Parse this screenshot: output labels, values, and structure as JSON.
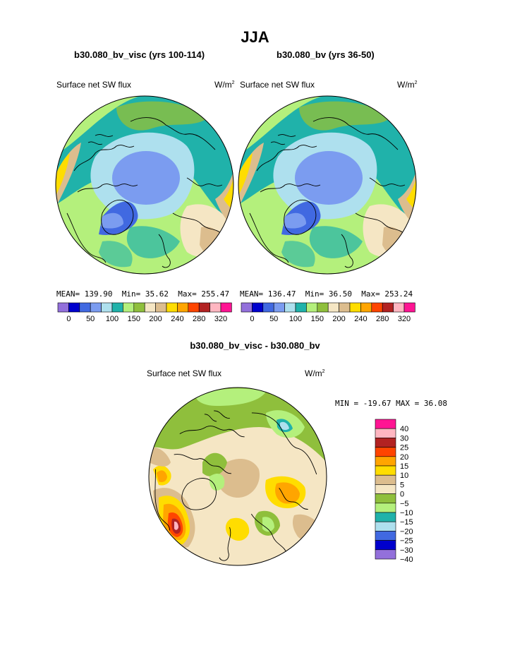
{
  "page": {
    "title": "JJA"
  },
  "colors": {
    "ocean_blue": "#7b9cf0",
    "light_blue": "#aee0ee",
    "teal": "#20b2aa",
    "light_green": "#b4f07c",
    "green": "#8fbf3c",
    "beige": "#f5e6c4",
    "tan": "#dcbd8e",
    "yellow": "#ffdd00",
    "orange": "#ffa500",
    "red_orange": "#ff4500",
    "dark_red": "#b22222",
    "pink": "#ffb6c1",
    "magenta": "#ff1493"
  },
  "chart_data": [
    {
      "type": "heatmap",
      "projection": "polar stereographic",
      "title": "b30.080_bv_visc (yrs 100-114)",
      "field_label": "Surface net SW flux",
      "units_base": "W/m",
      "units_exp": "2",
      "stats": {
        "mean_label": "MEAN=",
        "mean": "139.90",
        "min_label": "Min=",
        "min": "35.62",
        "max_label": "Max=",
        "max": "255.47"
      },
      "colorbar": {
        "orientation": "horizontal",
        "colors": [
          "#9370db",
          "#0000cd",
          "#4169e1",
          "#7b9cf0",
          "#aee0ee",
          "#20b2aa",
          "#b4f07c",
          "#8fbf3c",
          "#f5e6c4",
          "#dcbd8e",
          "#ffdd00",
          "#ffa500",
          "#ff4500",
          "#b22222",
          "#ffb6c1",
          "#ff1493"
        ],
        "tick_labels": [
          "0",
          "50",
          "100",
          "150",
          "200",
          "240",
          "280",
          "320"
        ]
      }
    },
    {
      "type": "heatmap",
      "projection": "polar stereographic",
      "title": "b30.080_bv (yrs 36-50)",
      "field_label": "Surface net SW flux",
      "units_base": "W/m",
      "units_exp": "2",
      "stats": {
        "mean_label": "MEAN=",
        "mean": "136.47",
        "min_label": "Min=",
        "min": "36.50",
        "max_label": "Max=",
        "max": "253.24"
      },
      "colorbar": {
        "orientation": "horizontal",
        "colors": [
          "#9370db",
          "#0000cd",
          "#4169e1",
          "#7b9cf0",
          "#aee0ee",
          "#20b2aa",
          "#b4f07c",
          "#8fbf3c",
          "#f5e6c4",
          "#dcbd8e",
          "#ffdd00",
          "#ffa500",
          "#ff4500",
          "#b22222",
          "#ffb6c1",
          "#ff1493"
        ],
        "tick_labels": [
          "0",
          "50",
          "100",
          "150",
          "200",
          "240",
          "280",
          "320"
        ]
      }
    },
    {
      "type": "heatmap",
      "projection": "polar stereographic",
      "title": "b30.080_bv_visc - b30.080_bv",
      "field_label": "Surface net SW flux",
      "units_base": "W/m",
      "units_exp": "2",
      "stats": {
        "min_label": "MIN =",
        "min": "-19.67",
        "max_label": "MAX =",
        "max": "36.08"
      },
      "colorbar": {
        "orientation": "vertical",
        "colors_top_to_bottom": [
          "#ff1493",
          "#ffb6c1",
          "#b22222",
          "#ff4500",
          "#ffa500",
          "#ffdd00",
          "#dcbd8e",
          "#f5e6c4",
          "#8fbf3c",
          "#b4f07c",
          "#20b2aa",
          "#aee0ee",
          "#4169e1",
          "#0000cd",
          "#9370db"
        ],
        "tick_labels": [
          "40",
          "30",
          "25",
          "20",
          "15",
          "10",
          "5",
          "0",
          "−5",
          "−10",
          "−15",
          "−20",
          "−25",
          "−30",
          "−40"
        ]
      }
    }
  ]
}
